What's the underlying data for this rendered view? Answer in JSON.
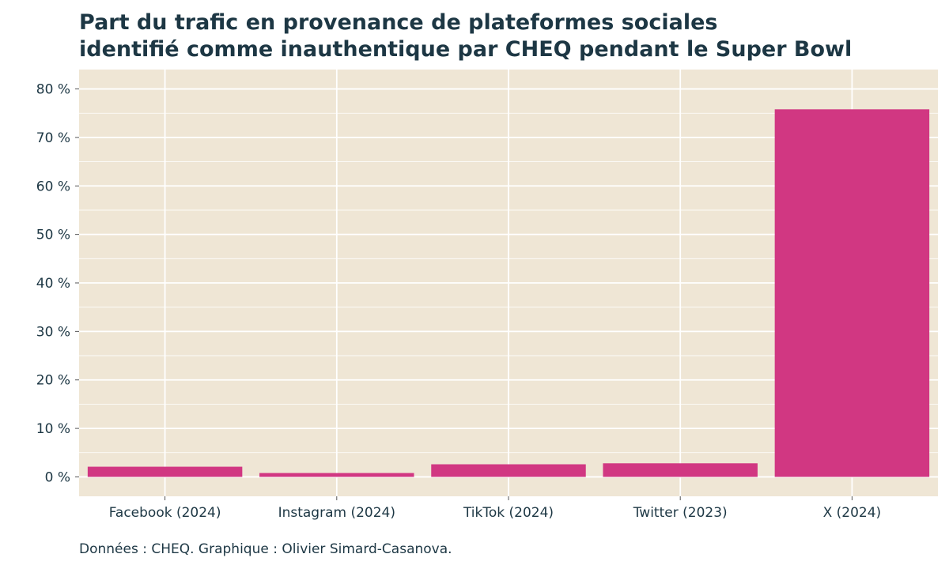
{
  "chart_data": {
    "type": "bar",
    "title_lines": [
      "Part du trafic en provenance de plateformes sociales",
      "identifié comme inauthentique par CHEQ pendant le Super Bowl"
    ],
    "caption": "Données : CHEQ. Graphique : Olivier Simard-Casanova.",
    "categories": [
      "Facebook (2024)",
      "Instagram (2024)",
      "TikTok (2024)",
      "Twitter (2023)",
      "X (2024)"
    ],
    "values": [
      2.1,
      0.8,
      2.6,
      2.8,
      75.8
    ],
    "ylim": [
      -4,
      84
    ],
    "y_ticks": [
      0,
      10,
      20,
      30,
      40,
      50,
      60,
      70,
      80
    ],
    "y_tick_labels": [
      "0 %",
      "10 %",
      "20 %",
      "30 %",
      "40 %",
      "50 %",
      "60 %",
      "70 %",
      "80 %"
    ],
    "grid": true,
    "colors": {
      "bar": "#d13782",
      "panel": "#efe6d5",
      "grid": "#ffffff",
      "text": "#1d3744"
    }
  }
}
